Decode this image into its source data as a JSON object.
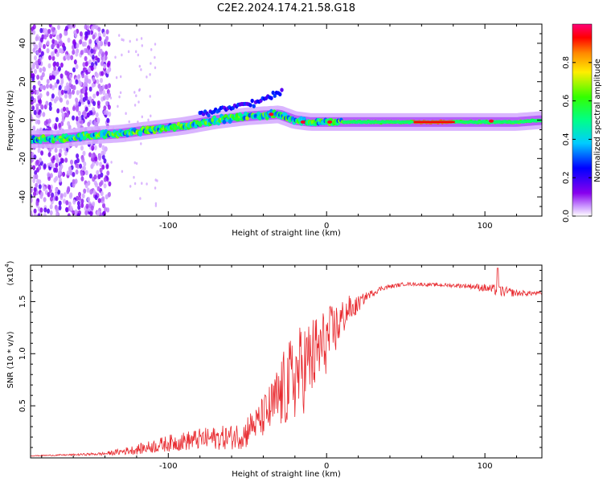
{
  "figure_title": "C2E2.2024.174.21.58.G18",
  "chart_data": [
    {
      "type": "heatmap",
      "title": "C2E2.2024.174.21.58.G18",
      "xlabel": "Height of straight line (km)",
      "ylabel": "Frequency (Hz)",
      "xlim": [
        -187,
        136
      ],
      "ylim": [
        -50,
        50
      ],
      "xticks": [
        -100,
        0,
        100
      ],
      "xtick_labels": [
        "-100",
        "0",
        "100"
      ],
      "yticks": [
        -40,
        -20,
        0,
        20,
        40
      ],
      "ytick_labels": [
        "-40",
        "-20",
        "0",
        "20",
        "40"
      ],
      "colorbar": {
        "label": "Normalized spectral amplitude",
        "range": [
          0,
          1
        ],
        "ticks": [
          0.0,
          0.2,
          0.4,
          0.6,
          0.8
        ],
        "tick_labels": [
          "0.0",
          "0.2",
          "0.4",
          "0.6",
          "0.8"
        ]
      },
      "ridge": {
        "x": [
          -187,
          -170,
          -150,
          -130,
          -110,
          -90,
          -70,
          -50,
          -30,
          -20,
          -10,
          0,
          20,
          50,
          80,
          100,
          120,
          136
        ],
        "frequency": [
          -10,
          -10,
          -8,
          -7,
          -5,
          -3,
          0,
          2,
          3,
          0,
          -1,
          -1,
          -1,
          -1,
          -1,
          -1,
          -1,
          0
        ]
      },
      "scatter_region_x": [
        -187,
        -137
      ],
      "secondary_branch": {
        "x": [
          -80,
          -60,
          -45,
          -35,
          -28
        ],
        "frequency": [
          3,
          7,
          9,
          12,
          16
        ]
      }
    },
    {
      "type": "line",
      "xlabel": "Height of straight line (km)",
      "ylabel": "SNR (10 * v/v)",
      "y_scale_label": "(x10",
      "y_scale_exponent": "4",
      "y_scale_suffix": ")",
      "xlim": [
        -187,
        136
      ],
      "ylim": [
        0,
        1.85
      ],
      "xticks": [
        -100,
        0,
        100
      ],
      "xtick_labels": [
        "-100",
        "0",
        "100"
      ],
      "yticks": [
        0.5,
        1.0,
        1.5
      ],
      "ytick_labels": [
        "0.5",
        "1.0",
        "1.5"
      ],
      "line_color": "#e8292e",
      "envelope": {
        "x": [
          -187,
          -160,
          -140,
          -120,
          -100,
          -80,
          -60,
          -45,
          -35,
          -25,
          -15,
          -5,
          5,
          15,
          25,
          35,
          50,
          70,
          90,
          100,
          110,
          120,
          136
        ],
        "base": [
          0.02,
          0.03,
          0.04,
          0.08,
          0.14,
          0.18,
          0.2,
          0.25,
          0.35,
          0.5,
          0.65,
          0.85,
          1.1,
          1.4,
          1.55,
          1.63,
          1.67,
          1.66,
          1.65,
          1.63,
          1.6,
          1.58,
          1.58
        ],
        "noise": [
          0.005,
          0.01,
          0.02,
          0.06,
          0.1,
          0.13,
          0.15,
          0.2,
          0.35,
          0.55,
          0.6,
          0.5,
          0.35,
          0.15,
          0.05,
          0.03,
          0.02,
          0.02,
          0.03,
          0.05,
          0.07,
          0.04,
          0.02
        ]
      },
      "peak_value": 1.82,
      "peak_x": 108
    }
  ]
}
